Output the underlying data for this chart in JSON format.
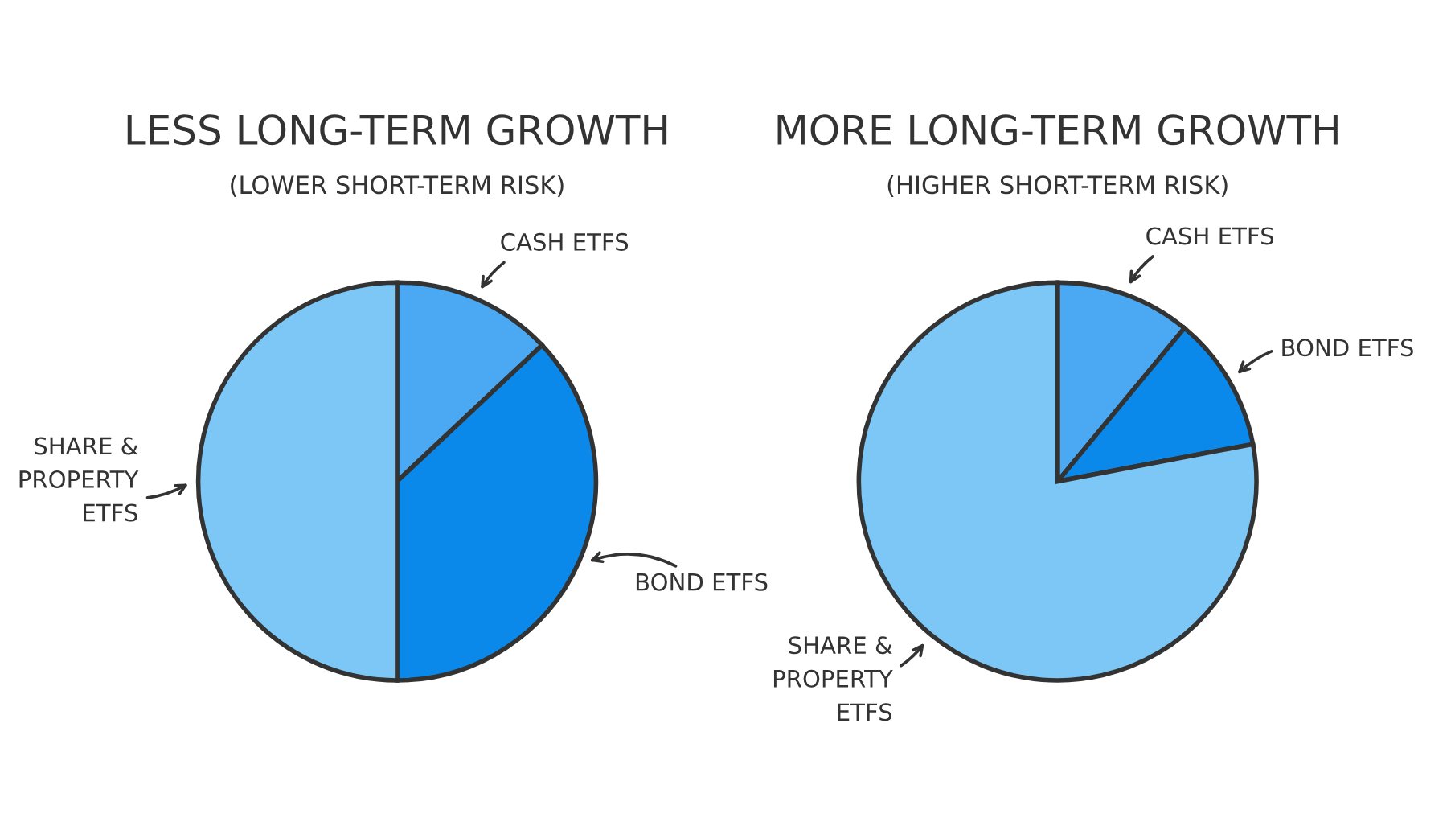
{
  "chart_data": [
    {
      "type": "pie",
      "title": "LESS LONG-TERM GROWTH",
      "subtitle": "(LOWER SHORT-TERM RISK)",
      "categories": [
        "CASH ETFS",
        "BOND ETFS",
        "SHARE &\nPROPERTY\nETFS"
      ],
      "values": [
        13,
        37,
        50
      ],
      "colors": [
        "#4aa9f2",
        "#0a89eb",
        "#7cc7f6"
      ]
    },
    {
      "type": "pie",
      "title": "MORE LONG-TERM GROWTH",
      "subtitle": "(HIGHER SHORT-TERM RISK)",
      "categories": [
        "CASH ETFS",
        "BOND ETFS",
        "SHARE &\nPROPERTY\nETFS"
      ],
      "values": [
        11,
        11,
        78
      ],
      "colors": [
        "#4aa9f2",
        "#0a89eb",
        "#7cc7f6"
      ]
    }
  ]
}
